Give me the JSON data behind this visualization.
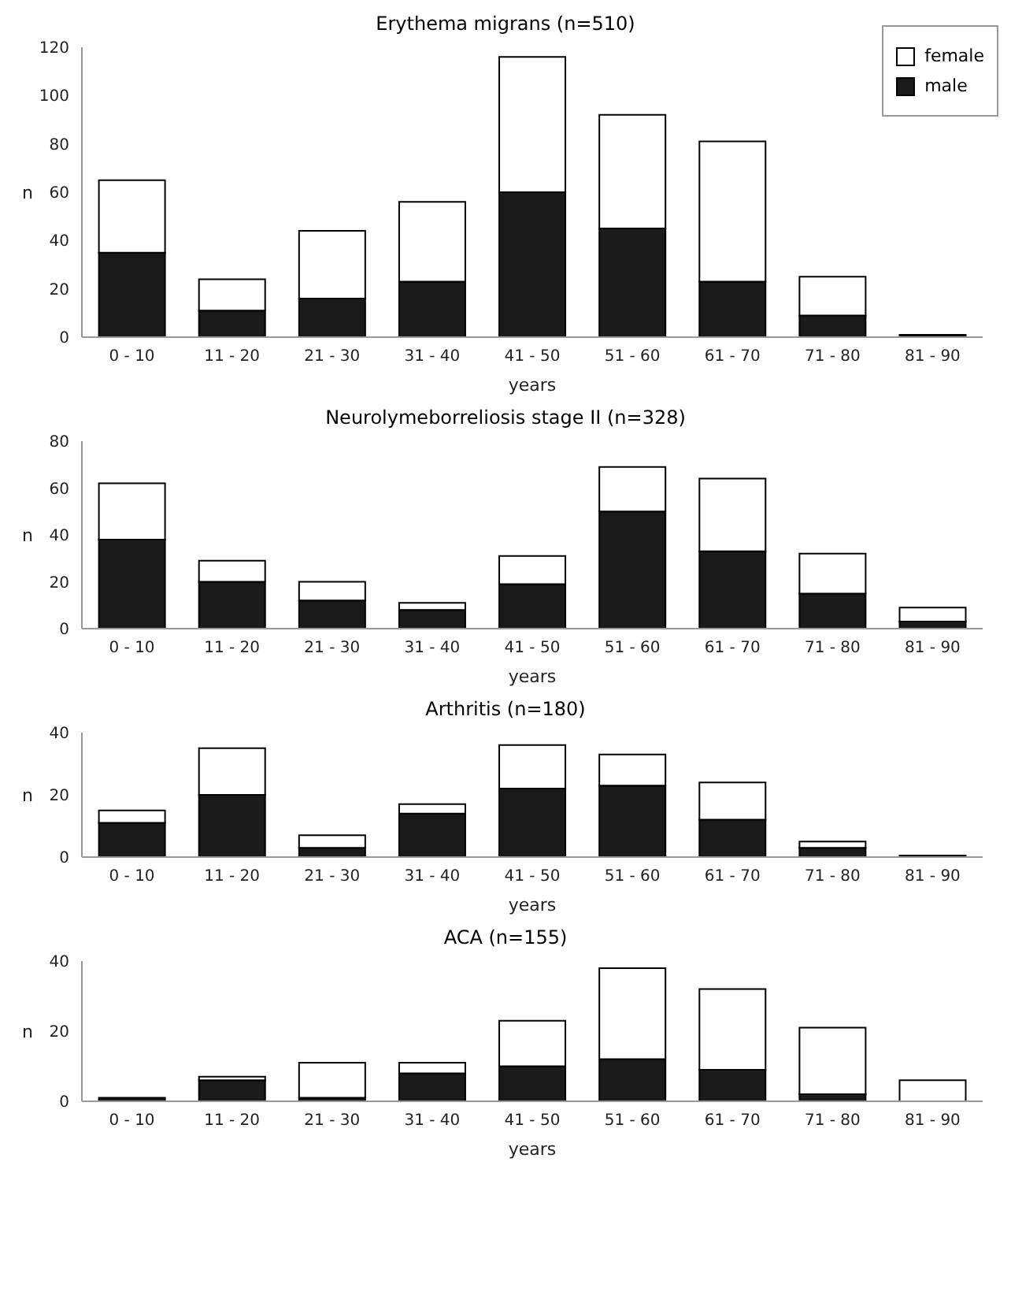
{
  "chart_data": [
    {
      "type": "bar",
      "title": "Erythema migrans (n=510)",
      "categories": [
        "0 - 10",
        "11 - 20",
        "21 - 30",
        "31 - 40",
        "41 - 50",
        "51 - 60",
        "61 - 70",
        "71 - 80",
        "81 - 90"
      ],
      "stacked": true,
      "xlabel": "years",
      "ylabel": "n",
      "ylim": [
        0,
        120
      ],
      "yticks": [
        0,
        20,
        40,
        60,
        80,
        100,
        120
      ],
      "legend": "top right",
      "series": [
        {
          "name": "male",
          "color": "#1a1a1a",
          "values": [
            35,
            11,
            16,
            23,
            60,
            45,
            23,
            9,
            1
          ]
        },
        {
          "name": "female",
          "color": "#ffffff",
          "values": [
            30,
            13,
            28,
            33,
            56,
            47,
            58,
            16,
            0
          ]
        }
      ]
    },
    {
      "type": "bar",
      "title": "Neurolymeborreliosis stage II (n=328)",
      "categories": [
        "0 - 10",
        "11 - 20",
        "21 - 30",
        "31 - 40",
        "41 - 50",
        "51 - 60",
        "61 - 70",
        "71 - 80",
        "81 - 90"
      ],
      "stacked": true,
      "xlabel": "years",
      "ylabel": "n",
      "ylim": [
        0,
        80
      ],
      "yticks": [
        0,
        20,
        40,
        60,
        80
      ],
      "series": [
        {
          "color": "#1a1a1a",
          "values": [
            38,
            20,
            12,
            8,
            19,
            50,
            33,
            15,
            3
          ]
        },
        {
          "color": "#ffffff",
          "values": [
            24,
            9,
            8,
            3,
            12,
            19,
            31,
            17,
            6
          ]
        }
      ]
    },
    {
      "type": "bar",
      "title": "Arthritis (n=180)",
      "categories": [
        "0 - 10",
        "11 - 20",
        "21 - 30",
        "31 - 40",
        "41 - 50",
        "51 - 60",
        "61 - 70",
        "71 - 80",
        "81 - 90"
      ],
      "stacked": true,
      "xlabel": "years",
      "ylabel": "n",
      "ylim": [
        0,
        40
      ],
      "yticks": [
        0,
        20,
        40
      ],
      "series": [
        {
          "color": "#1a1a1a",
          "values": [
            11,
            20,
            3,
            14,
            22,
            23,
            12,
            3,
            0.5
          ]
        },
        {
          "color": "#ffffff",
          "values": [
            4,
            15,
            4,
            3,
            14,
            10,
            12,
            2,
            0
          ]
        }
      ]
    },
    {
      "type": "bar",
      "title": "ACA (n=155)",
      "categories": [
        "0 - 10",
        "11 - 20",
        "21 - 30",
        "31 - 40",
        "41 - 50",
        "51 - 60",
        "61 - 70",
        "71 - 80",
        "81 - 90"
      ],
      "stacked": true,
      "xlabel": "years",
      "ylabel": "n",
      "ylim": [
        0,
        40
      ],
      "yticks": [
        0,
        20,
        40
      ],
      "series": [
        {
          "color": "#1a1a1a",
          "values": [
            1,
            6,
            1,
            8,
            10,
            12,
            9,
            2,
            0
          ]
        },
        {
          "color": "#ffffff",
          "values": [
            0,
            1,
            10,
            3,
            13,
            26,
            23,
            19,
            6
          ]
        }
      ]
    }
  ]
}
